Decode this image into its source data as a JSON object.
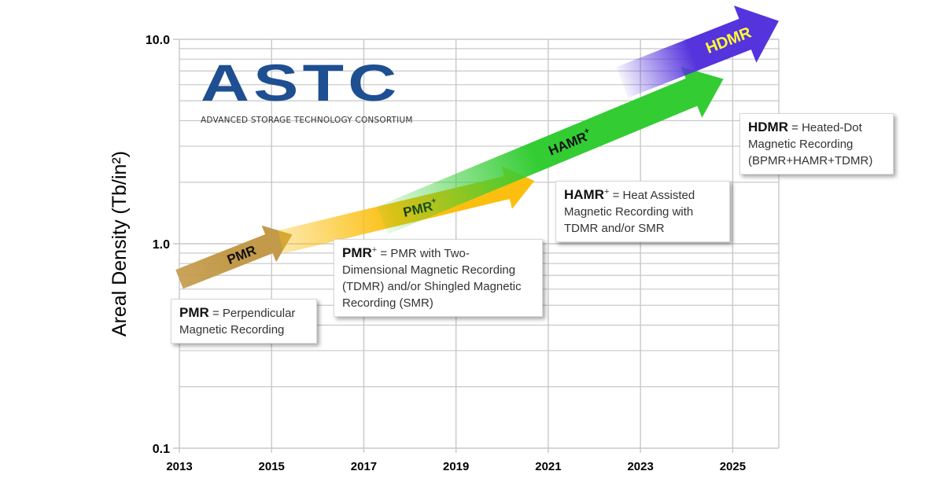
{
  "chart_data": {
    "type": "line",
    "title": "",
    "xlabel": "",
    "ylabel": "Areal Density (Tb/in²)",
    "y_scale": "log",
    "xlim": [
      2013,
      2026
    ],
    "ylim": [
      0.1,
      10.0
    ],
    "x_ticks": [
      "2013",
      "2015",
      "2017",
      "2019",
      "2021",
      "2023",
      "2025"
    ],
    "y_ticks": [
      "0.1",
      "1.0",
      "10.0"
    ],
    "grid": true,
    "series": [
      {
        "name": "PMR",
        "x": [
          2013.0,
          2015.45
        ],
        "y": [
          0.67,
          1.11
        ],
        "color": "#c39a4a"
      },
      {
        "name": "PMR+",
        "x": [
          2015.2,
          2020.7
        ],
        "y": [
          1.02,
          2.03
        ],
        "color": "#fbbf10"
      },
      {
        "name": "HAMR+",
        "x": [
          2017.4,
          2024.8
        ],
        "y": [
          1.3,
          6.4
        ],
        "color": "#33cc33"
      },
      {
        "name": "HDMR",
        "x": [
          2022.6,
          2026.0
        ],
        "y": [
          6.15,
          12.3
        ],
        "color": "#5533dd"
      }
    ]
  },
  "logo": {
    "main": "ASTC",
    "sub": "ADVANCED STORAGE TECHNOLOGY CONSORTIUM"
  },
  "legend_boxes": [
    {
      "term": "PMR",
      "sup": "",
      "text": " = Perpendicular Magnetic Recording"
    },
    {
      "term": "PMR",
      "sup": "+",
      "text": " = PMR with Two-Dimensional Magnetic Recording (TDMR) and/or Shingled Magnetic Recording (SMR)"
    },
    {
      "term": "HAMR",
      "sup": "+",
      "text": " = Heat Assisted Magnetic Recording with TDMR and/or SMR"
    },
    {
      "term": "HDMR",
      "sup": "",
      "text": " = Heated-Dot Magnetic Recording (BPMR+HAMR+TDMR)"
    }
  ],
  "arrow_labels": {
    "pmr": "PMR",
    "pmr_plus": "PMR",
    "hamr_plus": "HAMR",
    "hdmr": "HDMR",
    "plus": "+"
  },
  "colors": {
    "grid": "#c8c8c8",
    "hdmr_label": "#ffff33"
  }
}
